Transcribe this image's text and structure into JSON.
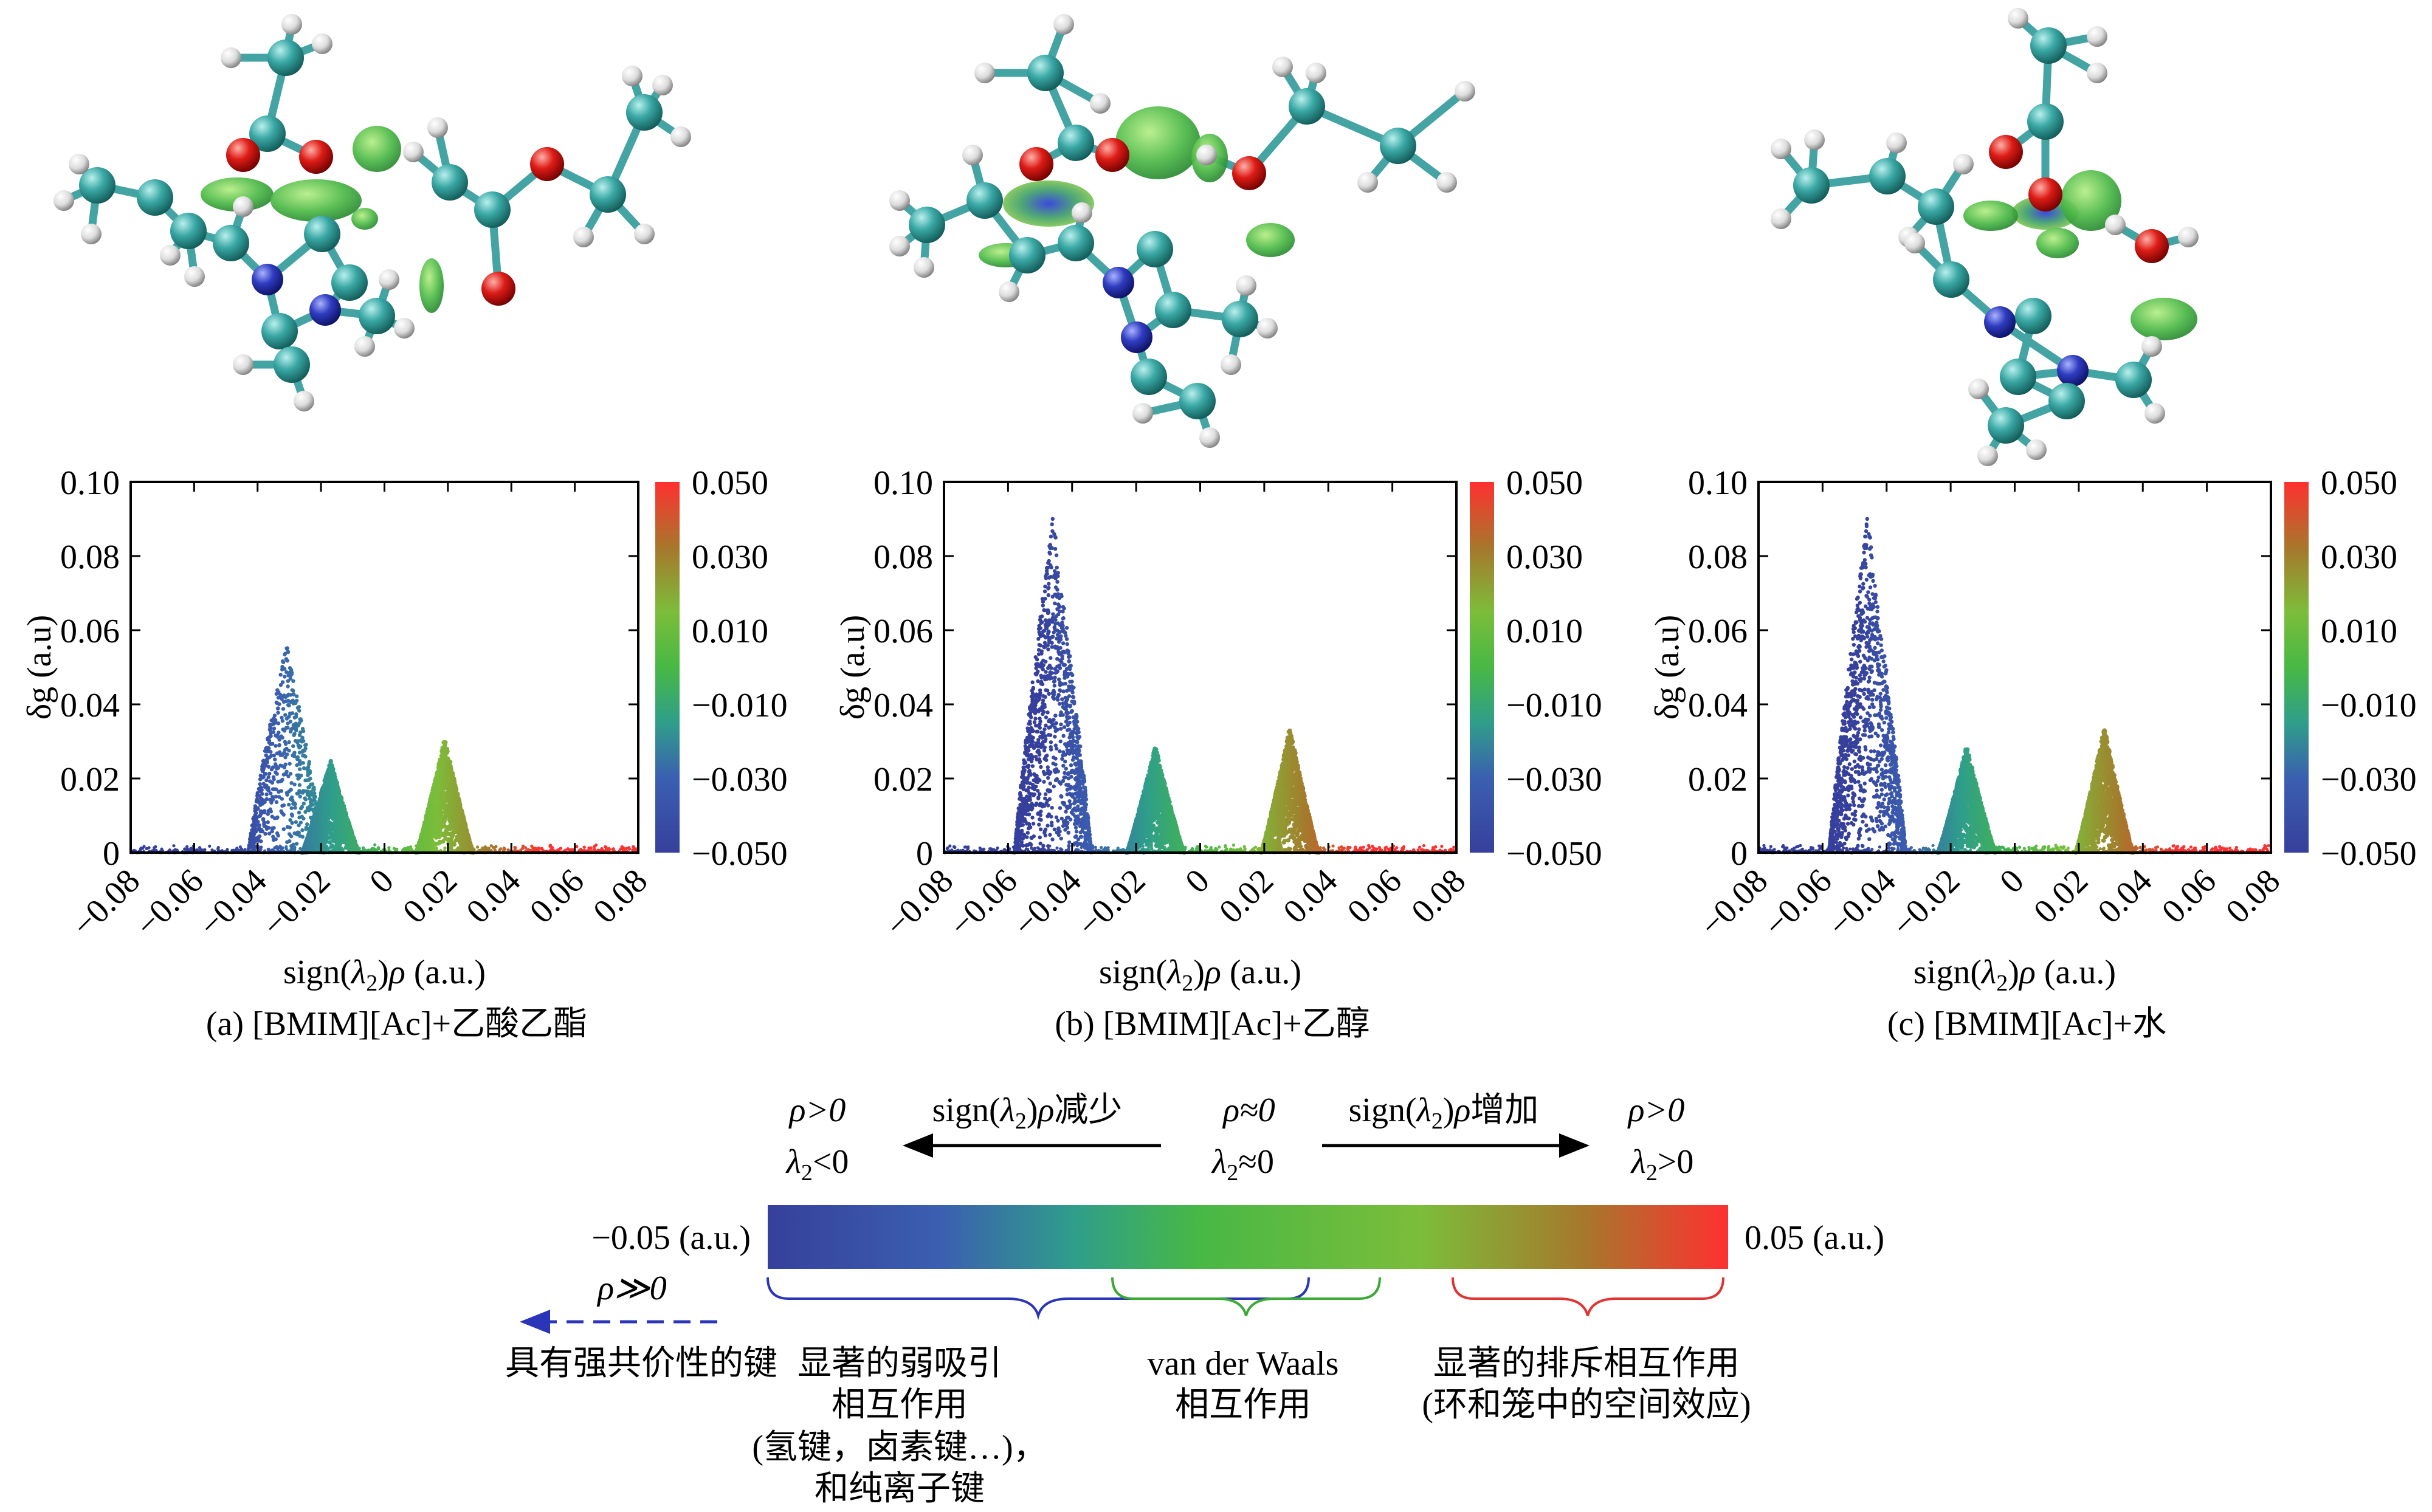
{
  "colors": {
    "nitrogen": "#2a35b8",
    "carbon": "#2f9f9c",
    "oxygen": "#d41515",
    "hydrogen": "#e6e6e6",
    "bond": "#44a3a3",
    "isosurface": "#46b84a",
    "colorbar_stops": [
      "#36409c",
      "#3b5fb0",
      "#2f9e8a",
      "#48b845",
      "#7cbd3a",
      "#a6782c",
      "#ff3030"
    ]
  },
  "icons": {
    "left_arrow": "dashed-left-arrow-icon",
    "molecules": [
      "bmim-ac-ethyl-acetate-molecule",
      "bmim-ac-ethanol-molecule",
      "bmim-ac-water-molecule"
    ]
  },
  "chart_data": [
    {
      "type": "scatter",
      "caption": "(a) [BMIM][Ac]+乙酸乙酯",
      "xlabel_parts": [
        "sign(",
        "λ",
        "2",
        ")",
        "ρ",
        " (a.u.)"
      ],
      "ylabel": "δg (a.u)",
      "xlim": [
        -0.08,
        0.08
      ],
      "ylim": [
        0,
        0.1
      ],
      "xticks": [
        "−0.08",
        "−0.06",
        "−0.04",
        "−0.02",
        "0",
        "0.02",
        "0.04",
        "0.06",
        "0.08"
      ],
      "yticks": [
        "0",
        "0.02",
        "0.04",
        "0.06",
        "0.08",
        "0.10"
      ],
      "colorbar": {
        "range": [
          -0.05,
          0.05
        ],
        "ticks": [
          "−0.050",
          "−0.030",
          "−0.010",
          "0.010",
          "0.030",
          "0.050"
        ]
      },
      "spikes": [
        {
          "center": -0.031,
          "peak": 0.057,
          "kind": "scatter"
        },
        {
          "center": -0.017,
          "peak": 0.025,
          "kind": "dense"
        },
        {
          "center": 0.019,
          "peak": 0.031,
          "kind": "dense"
        }
      ]
    },
    {
      "type": "scatter",
      "caption": "(b) [BMIM][Ac]+乙醇",
      "xlabel_parts": [
        "sign(",
        "λ",
        "2",
        ")",
        "ρ",
        " (a.u.)"
      ],
      "ylabel": "δg (a.u)",
      "xlim": [
        -0.08,
        0.08
      ],
      "ylim": [
        0,
        0.1
      ],
      "xticks": [
        "−0.08",
        "−0.06",
        "−0.04",
        "−0.02",
        "0",
        "0.02",
        "0.04",
        "0.06",
        "0.08"
      ],
      "yticks": [
        "0",
        "0.02",
        "0.04",
        "0.06",
        "0.08",
        "0.10"
      ],
      "colorbar": {
        "range": [
          -0.05,
          0.05
        ],
        "ticks": [
          "−0.050",
          "−0.030",
          "−0.010",
          "0.010",
          "0.030",
          "0.050"
        ]
      },
      "spikes": [
        {
          "center": -0.046,
          "peak": 0.091,
          "kind": "scatter"
        },
        {
          "center": -0.014,
          "peak": 0.029,
          "kind": "dense"
        },
        {
          "center": 0.028,
          "peak": 0.034,
          "kind": "dense"
        }
      ]
    },
    {
      "type": "scatter",
      "caption": "(c) [BMIM][Ac]+水",
      "xlabel_parts": [
        "sign(",
        "λ",
        "2",
        ")",
        "ρ",
        " (a.u.)"
      ],
      "ylabel": "δg (a.u)",
      "xlim": [
        -0.08,
        0.08
      ],
      "ylim": [
        0,
        0.1
      ],
      "xticks": [
        "−0.08",
        "−0.06",
        "−0.04",
        "−0.02",
        "0",
        "0.02",
        "0.04",
        "0.06",
        "0.08"
      ],
      "yticks": [
        "0",
        "0.02",
        "0.04",
        "0.06",
        "0.08",
        "0.10"
      ],
      "colorbar": {
        "range": [
          -0.05,
          0.05
        ],
        "ticks": [
          "−0.050",
          "−0.030",
          "−0.010",
          "0.010",
          "0.030",
          "0.050"
        ]
      },
      "spikes": [
        {
          "center": -0.046,
          "peak": 0.091,
          "kind": "scatter"
        },
        {
          "center": -0.015,
          "peak": 0.029,
          "kind": "dense"
        },
        {
          "center": 0.028,
          "peak": 0.034,
          "kind": "dense"
        }
      ]
    }
  ],
  "legend": {
    "left_value": "−0.05 (a.u.)",
    "right_value": "0.05 (a.u.)",
    "left_rho": "ρ>0",
    "left_lambda_parts": [
      "λ",
      "2",
      "<0"
    ],
    "center_rho": "ρ≈0",
    "center_lambda_parts": [
      "λ",
      "2",
      "≈0"
    ],
    "right_rho": "ρ>0",
    "right_lambda_parts": [
      "λ",
      "2",
      ">0"
    ],
    "decrease_parts": [
      "sign(",
      "λ",
      "2",
      ")",
      "ρ",
      "减少"
    ],
    "increase_parts": [
      "sign(",
      "λ",
      "2",
      ")",
      "ρ",
      "增加"
    ],
    "strong_rho": "ρ≫0",
    "strong_label": "具有强共价性的键",
    "attractive_lines": [
      "显著的弱吸引",
      "相互作用",
      "(氢键，卤素键…)，",
      "和纯离子键"
    ],
    "vdw_lines": [
      "van der Waals",
      "相互作用"
    ],
    "repulsive_lines": [
      "显著的排斥相互作用",
      "(环和笼中的空间效应)"
    ]
  }
}
